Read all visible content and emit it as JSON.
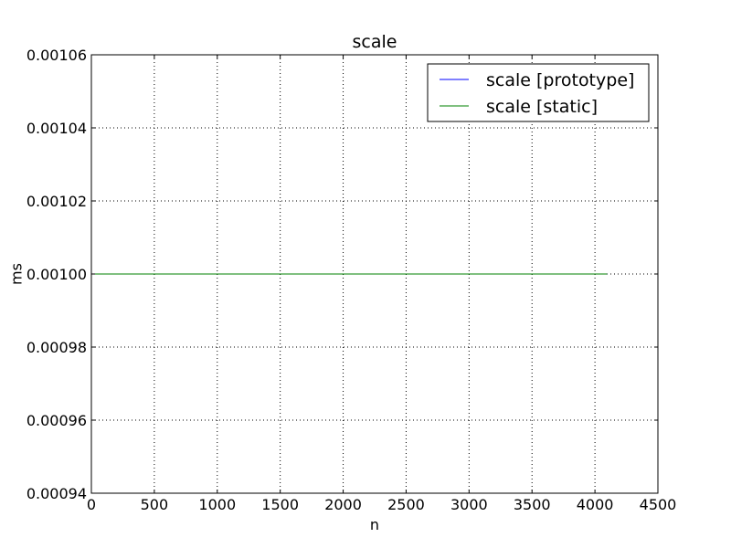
{
  "chart_data": {
    "type": "line",
    "title": "scale",
    "xlabel": "n",
    "ylabel": "ms",
    "xlim": [
      0,
      4500
    ],
    "ylim": [
      0.00094,
      0.00106
    ],
    "xticks": [
      0,
      500,
      1000,
      1500,
      2000,
      2500,
      3000,
      3500,
      4000,
      4500
    ],
    "xtick_labels": [
      "0",
      "500",
      "1000",
      "1500",
      "2000",
      "2500",
      "3000",
      "3500",
      "4000",
      "4500"
    ],
    "yticks": [
      0.00094,
      0.00096,
      0.00098,
      0.001,
      0.00102,
      0.00104,
      0.00106
    ],
    "ytick_labels": [
      "0.00094",
      "0.00096",
      "0.00098",
      "0.00100",
      "0.00102",
      "0.00104",
      "0.00106"
    ],
    "grid": true,
    "legend_position": "top-right",
    "series": [
      {
        "name": "scale [prototype]",
        "color": "#0000ff",
        "x": [
          1,
          4096
        ],
        "y": [
          0.001,
          0.001
        ]
      },
      {
        "name": "scale [static]",
        "color": "#008000",
        "x": [
          1,
          4096
        ],
        "y": [
          0.001,
          0.001
        ]
      }
    ]
  }
}
